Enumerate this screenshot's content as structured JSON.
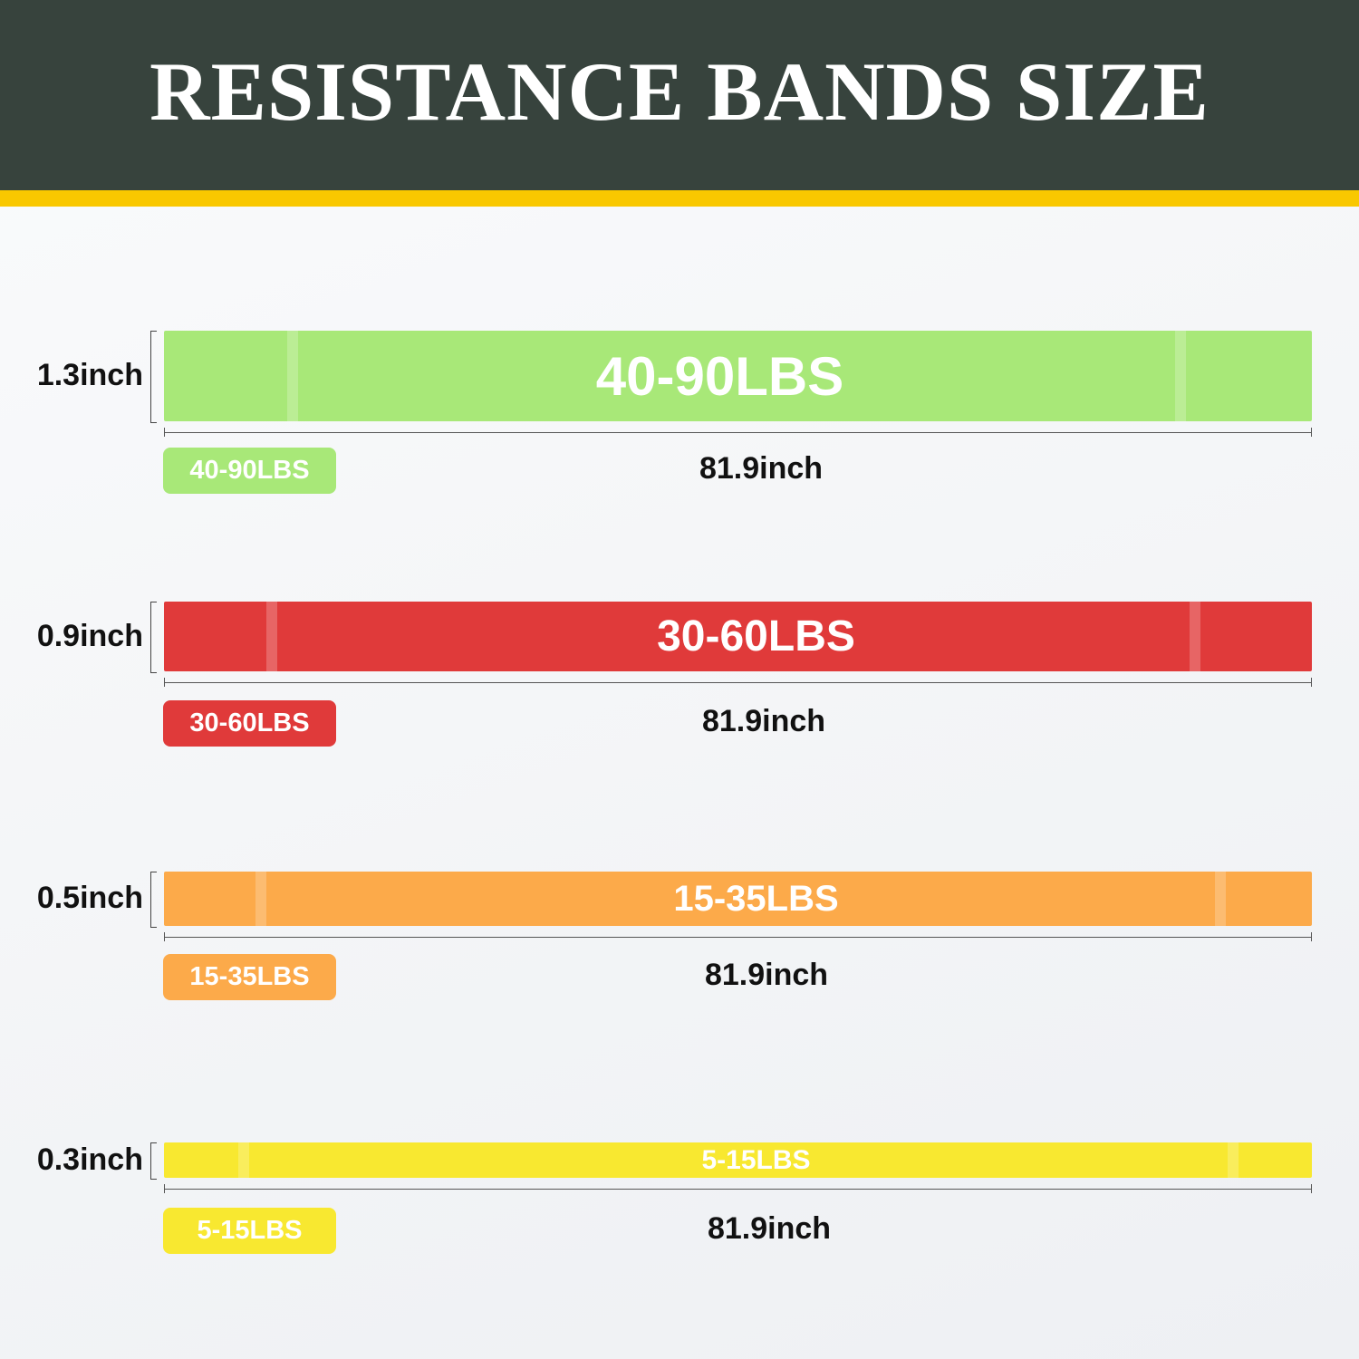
{
  "header": {
    "title": "RESISTANCE BANDS SIZE"
  },
  "bands": [
    {
      "width": "1.3inch",
      "resistance": "40-90LBS",
      "length": "81.9inch"
    },
    {
      "width": "0.9inch",
      "resistance": "30-60LBS",
      "length": "81.9inch"
    },
    {
      "width": "0.5inch",
      "resistance": "15-35LBS",
      "length": "81.9inch"
    },
    {
      "width": "0.3inch",
      "resistance": "5-15LBS",
      "length": "81.9inch"
    }
  ]
}
